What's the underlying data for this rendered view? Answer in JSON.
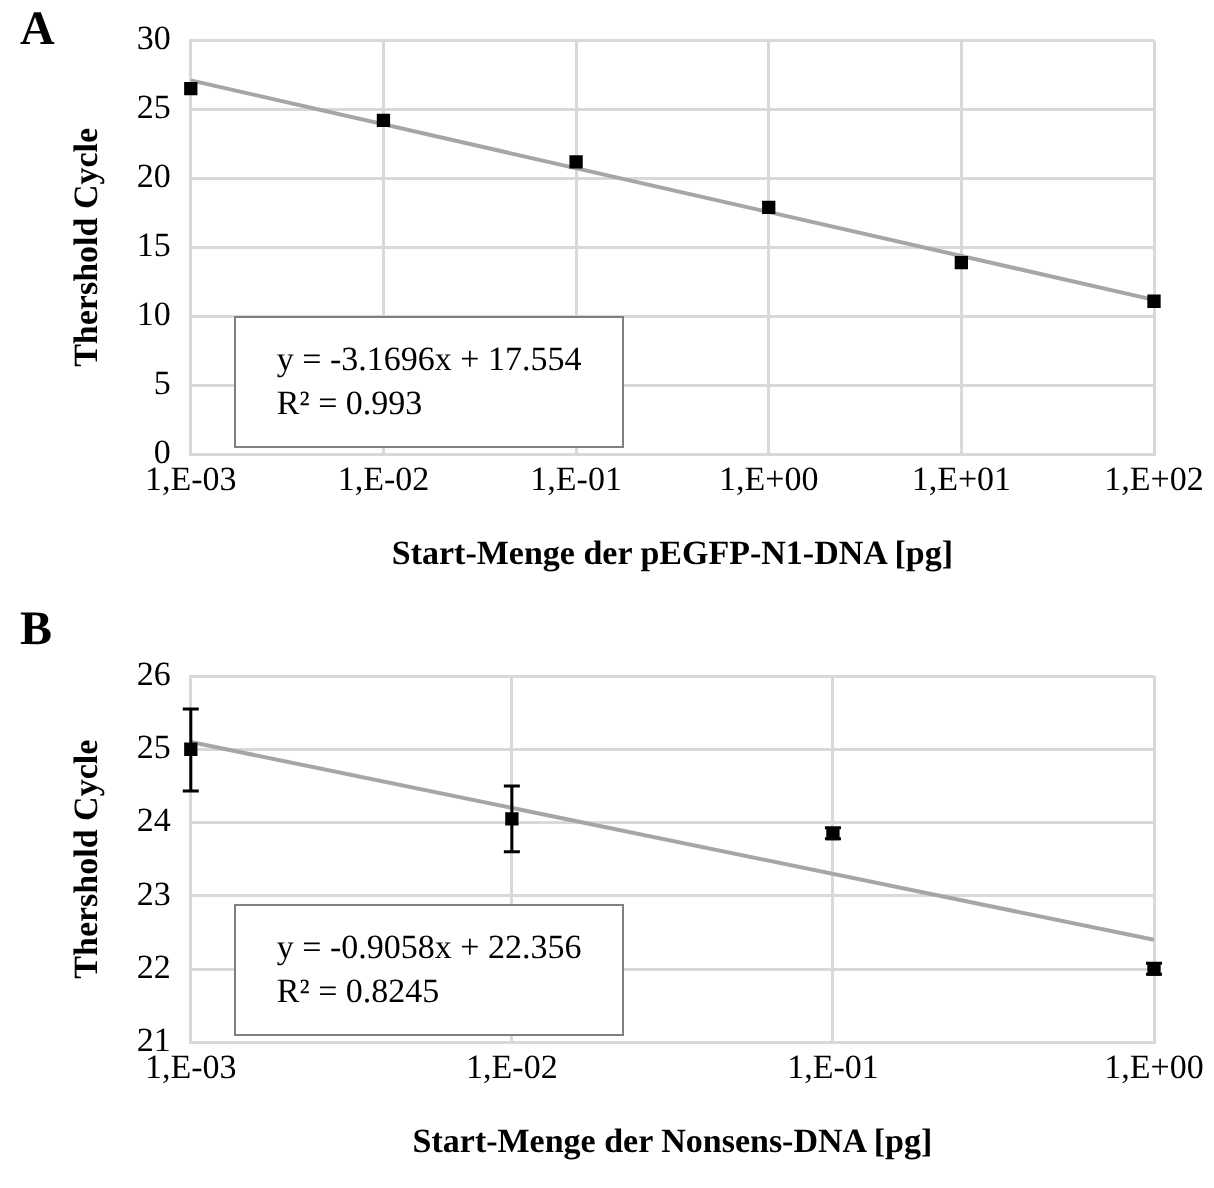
{
  "chart_data": [
    {
      "type": "scatter",
      "xlabel": "Start-Menge der pEGFP-N1-DNA [pg]",
      "ylabel": "Thershold Cycle",
      "grid": true,
      "legend": false,
      "categories": [
        "1,E-03",
        "1,E-02",
        "1,E-01",
        "1,E+00",
        "1,E+01",
        "1,E+02"
      ],
      "ylim": [
        0,
        30
      ],
      "yticks": [
        0,
        5,
        10,
        15,
        20,
        25,
        30
      ],
      "annotations": [
        "A",
        "y = -3.1696x + 17.554",
        "R² = 0.993"
      ],
      "series": [
        {
          "type": "scatter",
          "color": "#000000",
          "marker": "square",
          "values": [
            26.5,
            24.2,
            21.2,
            17.9,
            13.9,
            11.1
          ]
        },
        {
          "type": "line",
          "color": "#a6a6a6",
          "x": [
            "1,E-03",
            "1,E+02"
          ],
          "values": [
            27.1,
            11.2
          ]
        }
      ]
    },
    {
      "type": "scatter",
      "xlabel": "Start-Menge der Nonsens-DNA [pg]",
      "ylabel": "Thershold Cycle",
      "grid": true,
      "legend": false,
      "categories": [
        "1,E-03",
        "1,E-02",
        "1,E-01",
        "1,E+00"
      ],
      "ylim": [
        21,
        26
      ],
      "yticks": [
        21,
        22,
        23,
        24,
        25,
        26
      ],
      "annotations": [
        "B",
        "y = -0.9058x + 22.356",
        "R² = 0.8245"
      ],
      "series": [
        {
          "type": "scatter",
          "color": "#000000",
          "marker": "square",
          "values": [
            25.0,
            24.05,
            23.85,
            22.0
          ],
          "errors": [
            [
              24.43,
              25.55
            ],
            [
              23.6,
              24.5
            ],
            [
              23.78,
              23.93
            ],
            [
              21.93,
              22.08
            ]
          ]
        },
        {
          "type": "line",
          "color": "#a6a6a6",
          "x": [
            "1,E-03",
            "1,E+00"
          ],
          "values": [
            25.1,
            22.4
          ]
        }
      ]
    }
  ]
}
